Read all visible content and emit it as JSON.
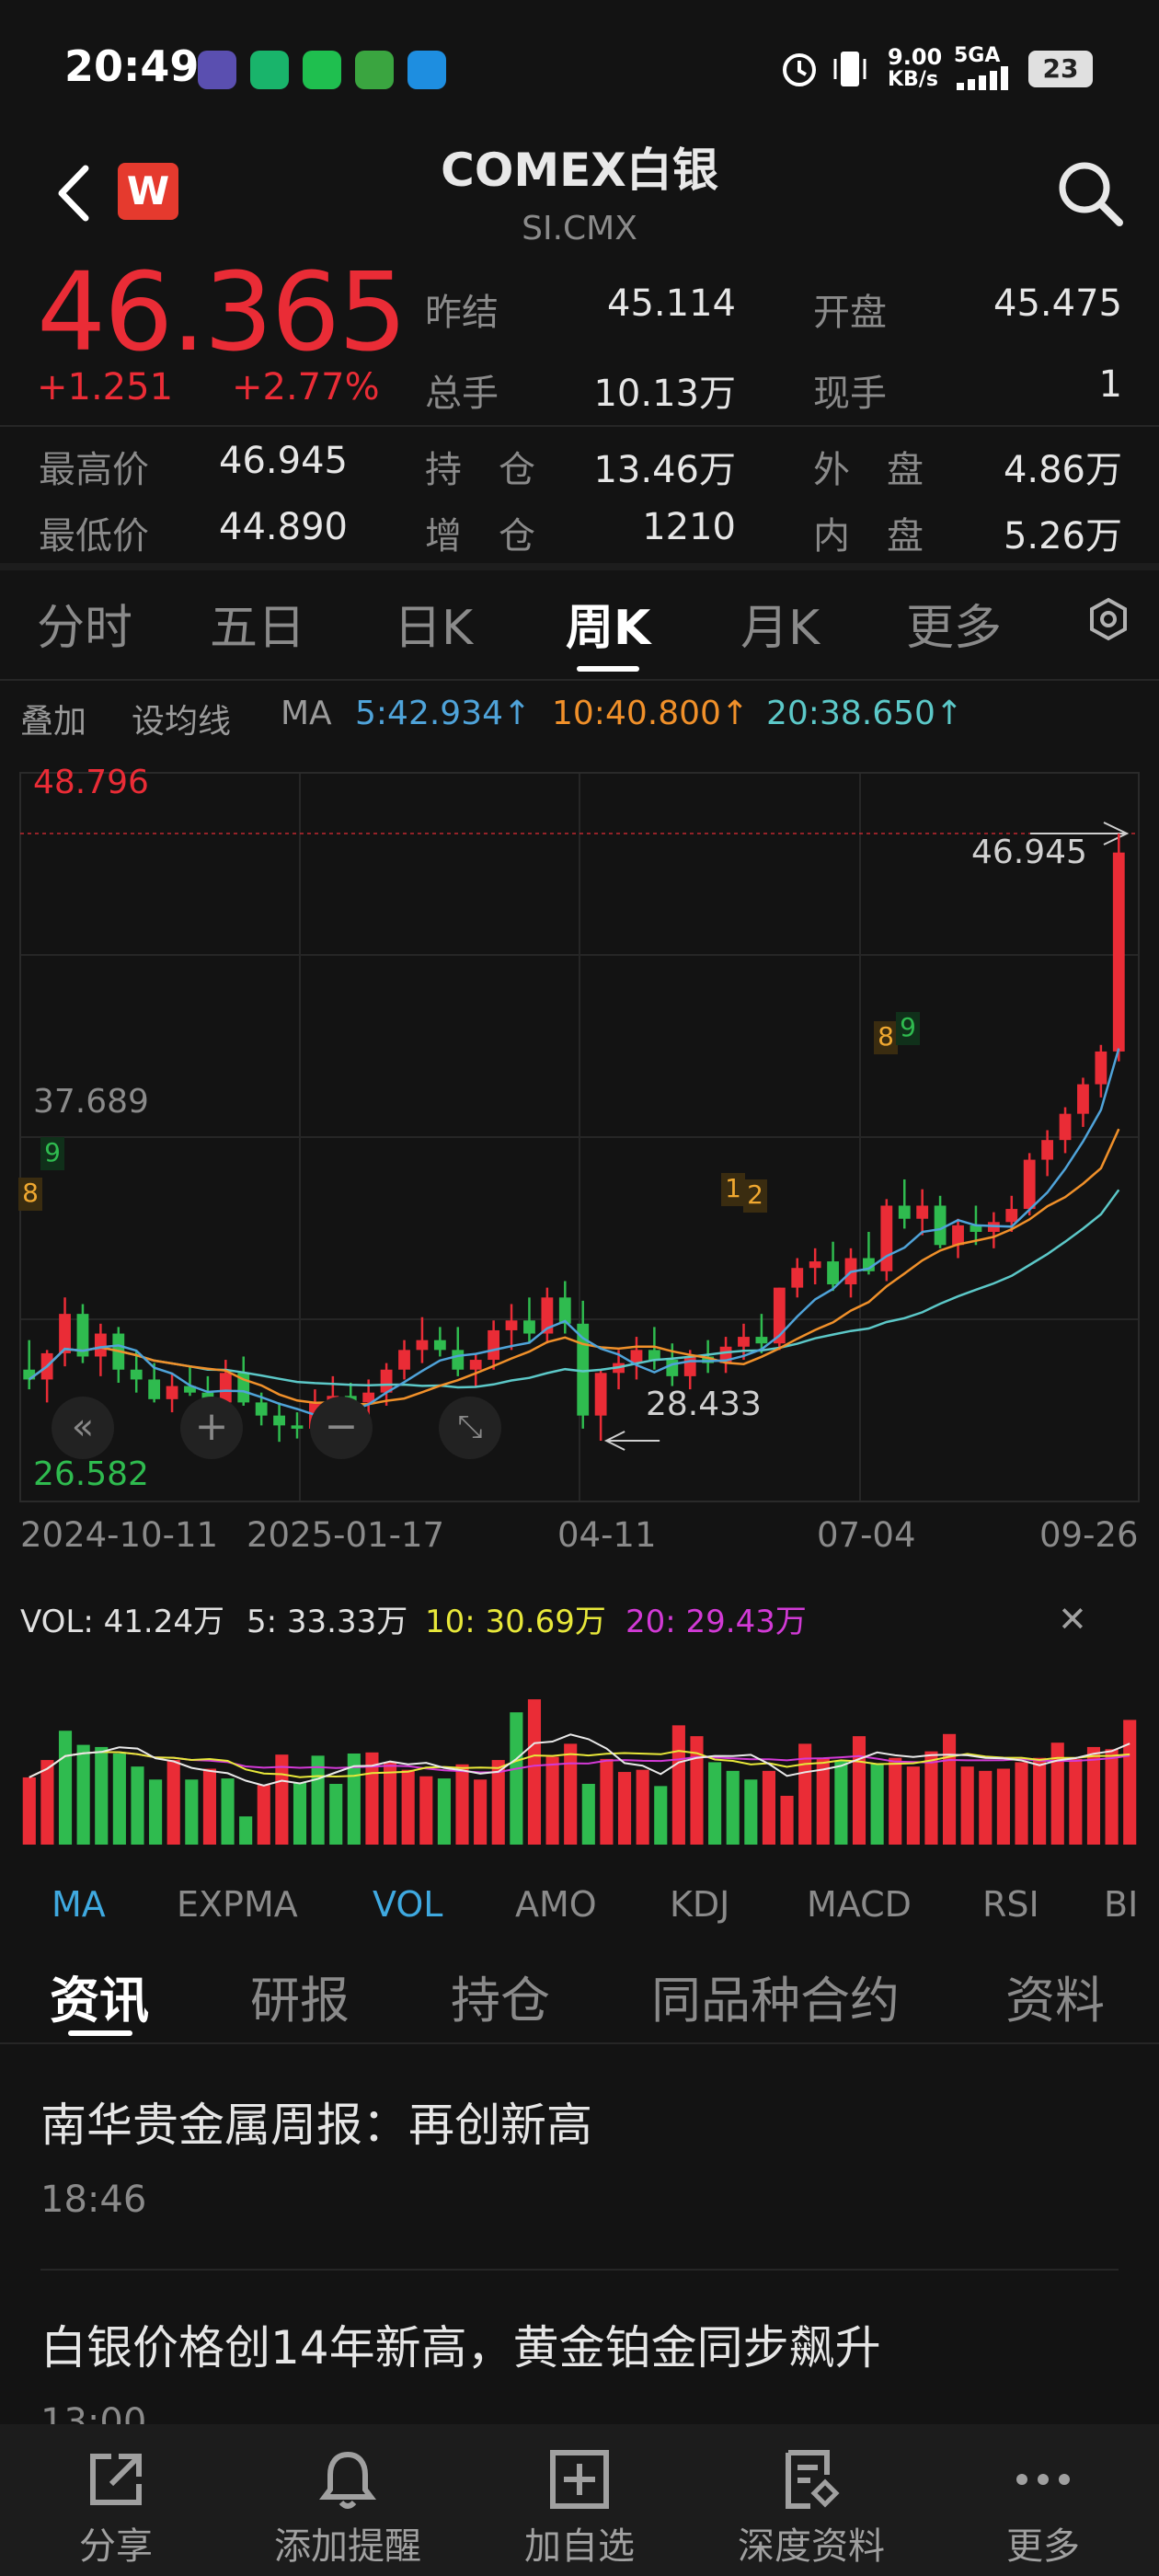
{
  "status_bar": {
    "time": "20:49",
    "net_speed_value": "9.00",
    "net_speed_unit": "KB/s",
    "network": "5GA",
    "battery": "23"
  },
  "header": {
    "title": "COMEX白银",
    "subtitle": "SI.CMX",
    "logo": "W"
  },
  "quote": {
    "price": "46.365",
    "change": "+1.251",
    "change_pct": "+2.77%",
    "prev_close_label": "昨结",
    "prev_close": "45.114",
    "open_label": "开盘",
    "open": "45.475",
    "volume_label": "总手",
    "volume": "10.13万",
    "cur_hand_label": "现手",
    "cur_hand": "1",
    "high_label": "最高价",
    "high": "46.945",
    "oi_label": "持　仓",
    "oi": "13.46万",
    "outer_label": "外　盘",
    "outer": "4.86万",
    "low_label": "最低价",
    "low": "44.890",
    "oi_chg_label": "增　仓",
    "oi_chg": "1210",
    "inner_label": "内　盘",
    "inner": "5.26万"
  },
  "period_tabs": [
    "分时",
    "五日",
    "日K",
    "周K",
    "月K",
    "更多"
  ],
  "active_tab": "周K",
  "ma_row": {
    "overlay": "叠加",
    "set_ma": "设均线",
    "ma": "MA",
    "ma5": "5:42.934↑",
    "ma10": "10:40.800↑",
    "ma20": "20:38.650↑"
  },
  "colors": {
    "up": "#ea2c36",
    "down": "#2fbb4f",
    "ma5": "#4fa3d9",
    "ma10": "#f0902a",
    "ma20": "#5cc8c8",
    "accent": "#3fa9e0"
  },
  "chart_labels": {
    "y_top": "48.796",
    "y_mid": "37.689",
    "y_bottom": "26.582",
    "high_marker": "46.945",
    "low_marker": "28.433",
    "markers": [
      "8",
      "9",
      "1",
      "2",
      "8",
      "9"
    ],
    "dates": [
      "2024-10-11",
      "2025-01-17",
      "04-11",
      "07-04",
      "09-26"
    ]
  },
  "chart_data": {
    "type": "candlestick",
    "ylim": [
      26.582,
      48.796
    ],
    "x_ticks": [
      "2024-10-11",
      "2025-01-17",
      "04-11",
      "07-04",
      "09-26"
    ],
    "candles": [
      [
        30.6,
        31.5,
        30.0,
        30.3
      ],
      [
        30.3,
        31.2,
        29.6,
        31.1
      ],
      [
        31.1,
        32.8,
        30.7,
        32.3
      ],
      [
        32.3,
        32.6,
        30.8,
        31.0
      ],
      [
        31.0,
        32.0,
        30.4,
        31.7
      ],
      [
        31.7,
        31.9,
        30.2,
        30.6
      ],
      [
        30.6,
        31.2,
        29.9,
        30.3
      ],
      [
        30.3,
        30.8,
        29.6,
        29.7
      ],
      [
        29.7,
        30.5,
        29.3,
        30.1
      ],
      [
        30.1,
        30.7,
        29.8,
        29.9
      ],
      [
        29.9,
        30.4,
        29.4,
        29.6
      ],
      [
        29.6,
        30.9,
        29.2,
        30.5
      ],
      [
        30.5,
        31.0,
        29.5,
        29.6
      ],
      [
        29.6,
        29.9,
        28.9,
        29.2
      ],
      [
        29.2,
        29.6,
        28.4,
        28.9
      ],
      [
        28.9,
        29.3,
        28.5,
        28.8
      ],
      [
        28.8,
        30.0,
        28.6,
        29.6
      ],
      [
        29.6,
        30.4,
        29.3,
        29.8
      ],
      [
        29.8,
        30.2,
        29.4,
        29.6
      ],
      [
        29.6,
        30.3,
        29.2,
        29.9
      ],
      [
        29.9,
        30.8,
        29.5,
        30.6
      ],
      [
        30.6,
        31.5,
        30.3,
        31.2
      ],
      [
        31.2,
        32.2,
        30.8,
        31.5
      ],
      [
        31.5,
        31.9,
        31.0,
        31.2
      ],
      [
        31.2,
        31.9,
        30.4,
        30.6
      ],
      [
        30.6,
        31.1,
        30.1,
        30.9
      ],
      [
        30.9,
        32.1,
        30.6,
        31.8
      ],
      [
        31.8,
        32.6,
        31.2,
        32.1
      ],
      [
        32.1,
        32.8,
        31.4,
        31.7
      ],
      [
        31.7,
        33.1,
        31.4,
        32.8
      ],
      [
        32.8,
        33.3,
        31.7,
        32.0
      ],
      [
        32.0,
        32.7,
        28.8,
        29.2
      ],
      [
        29.2,
        30.6,
        28.433,
        30.5
      ],
      [
        30.5,
        31.2,
        30.0,
        30.8
      ],
      [
        30.8,
        31.6,
        30.3,
        31.2
      ],
      [
        31.2,
        31.9,
        30.6,
        30.9
      ],
      [
        30.9,
        31.4,
        30.1,
        30.4
      ],
      [
        30.4,
        31.2,
        30.0,
        31.0
      ],
      [
        31.0,
        31.5,
        30.5,
        30.8
      ],
      [
        30.8,
        31.6,
        30.5,
        31.3
      ],
      [
        31.3,
        32.0,
        30.9,
        31.6
      ],
      [
        31.6,
        32.3,
        31.1,
        31.4
      ],
      [
        31.4,
        33.1,
        31.2,
        33.1
      ],
      [
        33.1,
        34.0,
        32.8,
        33.7
      ],
      [
        33.7,
        34.3,
        33.2,
        33.9
      ],
      [
        33.9,
        34.5,
        33.0,
        33.2
      ],
      [
        33.2,
        34.3,
        32.8,
        34.0
      ],
      [
        34.0,
        34.8,
        33.5,
        33.6
      ],
      [
        33.6,
        35.8,
        33.3,
        35.6
      ],
      [
        35.6,
        36.4,
        34.9,
        35.2
      ],
      [
        35.2,
        36.1,
        34.7,
        35.6
      ],
      [
        35.6,
        35.9,
        34.3,
        34.4
      ],
      [
        34.4,
        35.2,
        34.0,
        35.0
      ],
      [
        35.0,
        35.6,
        34.4,
        34.8
      ],
      [
        34.8,
        35.4,
        34.3,
        35.1
      ],
      [
        35.1,
        35.9,
        34.8,
        35.5
      ],
      [
        35.5,
        37.2,
        35.3,
        37.0
      ],
      [
        37.0,
        37.9,
        36.5,
        37.6
      ],
      [
        37.6,
        38.6,
        37.2,
        38.4
      ],
      [
        38.4,
        39.5,
        38.0,
        39.3
      ],
      [
        39.3,
        40.5,
        38.9,
        40.3
      ],
      [
        40.3,
        46.945,
        40.0,
        46.365
      ]
    ],
    "volume": [
      [
        0.62,
        "up"
      ],
      [
        0.78,
        "up"
      ],
      [
        1.05,
        "down"
      ],
      [
        0.92,
        "down"
      ],
      [
        0.9,
        "down"
      ],
      [
        0.84,
        "down"
      ],
      [
        0.72,
        "down"
      ],
      [
        0.6,
        "down"
      ],
      [
        0.78,
        "up"
      ],
      [
        0.6,
        "down"
      ],
      [
        0.7,
        "up"
      ],
      [
        0.61,
        "down"
      ],
      [
        0.26,
        "down"
      ],
      [
        0.55,
        "up"
      ],
      [
        0.83,
        "up"
      ],
      [
        0.57,
        "down"
      ],
      [
        0.82,
        "down"
      ],
      [
        0.56,
        "down"
      ],
      [
        0.84,
        "down"
      ],
      [
        0.85,
        "up"
      ],
      [
        0.76,
        "up"
      ],
      [
        0.69,
        "up"
      ],
      [
        0.63,
        "up"
      ],
      [
        0.61,
        "down"
      ],
      [
        0.74,
        "up"
      ],
      [
        0.6,
        "up"
      ],
      [
        0.78,
        "up"
      ],
      [
        1.22,
        "down"
      ],
      [
        1.34,
        "up"
      ],
      [
        0.81,
        "up"
      ],
      [
        0.93,
        "up"
      ],
      [
        0.56,
        "down"
      ],
      [
        0.79,
        "up"
      ],
      [
        0.67,
        "up"
      ],
      [
        0.69,
        "up"
      ],
      [
        0.54,
        "down"
      ],
      [
        1.1,
        "up"
      ],
      [
        1.0,
        "up"
      ],
      [
        0.76,
        "down"
      ],
      [
        0.68,
        "down"
      ],
      [
        0.6,
        "down"
      ],
      [
        0.68,
        "up"
      ],
      [
        0.45,
        "up"
      ],
      [
        0.93,
        "up"
      ],
      [
        0.8,
        "up"
      ],
      [
        0.77,
        "down"
      ],
      [
        1.0,
        "up"
      ],
      [
        0.75,
        "down"
      ],
      [
        0.8,
        "up"
      ],
      [
        0.72,
        "up"
      ],
      [
        0.86,
        "up"
      ],
      [
        1.02,
        "up"
      ],
      [
        0.72,
        "up"
      ],
      [
        0.68,
        "up"
      ],
      [
        0.7,
        "up"
      ],
      [
        0.76,
        "up"
      ],
      [
        0.8,
        "up"
      ],
      [
        0.94,
        "up"
      ],
      [
        0.79,
        "up"
      ],
      [
        0.9,
        "up"
      ],
      [
        0.88,
        "up"
      ],
      [
        1.15,
        "up"
      ]
    ]
  },
  "vol_legend": {
    "vol": "VOL: 41.24万",
    "ma5": "5: 33.33万",
    "ma10": "10: 30.69万",
    "ma20": "20: 29.43万"
  },
  "indicator_tabs": [
    "MA",
    "EXPMA",
    "VOL",
    "AMO",
    "KDJ",
    "MACD",
    "RSI",
    "BI"
  ],
  "news_tabs": [
    "资讯",
    "研报",
    "持仓",
    "同品种合约",
    "资料"
  ],
  "news": [
    {
      "title": "南华贵金属周报：再创新高",
      "time": "18:46"
    },
    {
      "title": "白银价格创14年新高，黄金铂金同步飙升",
      "time": "13:00"
    }
  ],
  "bottom_nav": [
    "分享",
    "添加提醒",
    "加自选",
    "深度资料",
    "更多"
  ]
}
